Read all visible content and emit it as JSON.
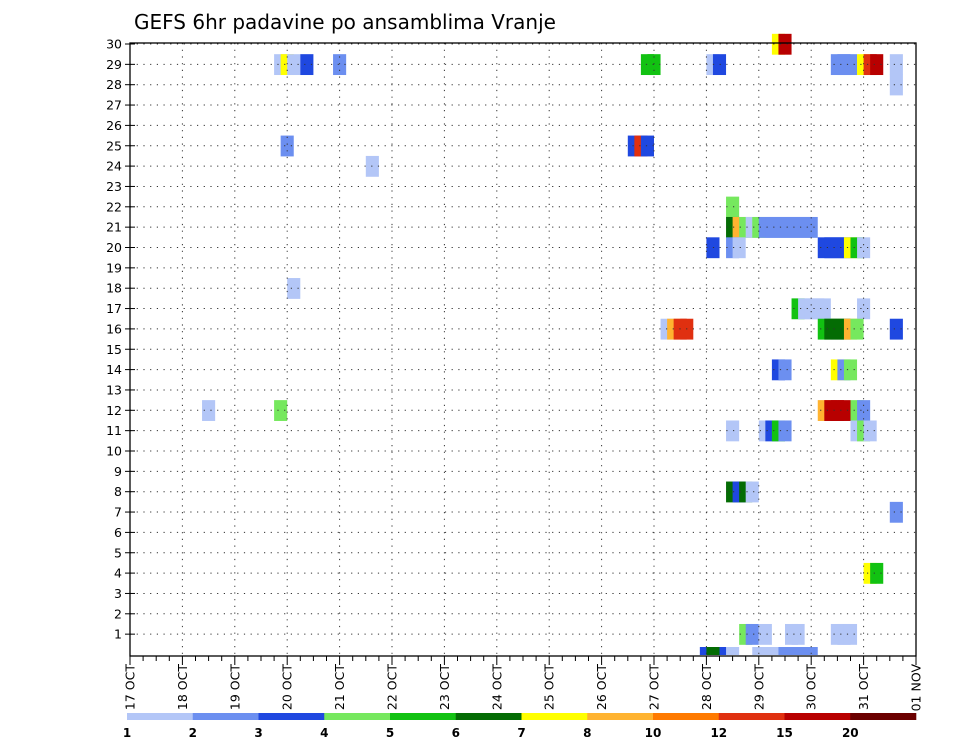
{
  "chart_data": {
    "type": "heatmap",
    "title": "GEFS 6hr padavine po ansamblima Vranje",
    "xlabel": "",
    "ylabel": "",
    "x_start": "17 OCT 00z",
    "x_step_hours": 6,
    "x_steps": 60,
    "x_ticks": [
      "17 OCT",
      "18 OCT",
      "19 OCT",
      "20 OCT",
      "21 OCT",
      "22 OCT",
      "23 OCT",
      "24 OCT",
      "25 OCT",
      "26 OCT",
      "27 OCT",
      "28 OCT",
      "29 OCT",
      "30 OCT",
      "31 OCT",
      "01 NOV"
    ],
    "y_ticks": [
      "1",
      "2",
      "3",
      "4",
      "5",
      "6",
      "7",
      "8",
      "9",
      "10",
      "11",
      "12",
      "13",
      "14",
      "15",
      "16",
      "17",
      "18",
      "19",
      "20",
      "21",
      "22",
      "23",
      "24",
      "25",
      "26",
      "27",
      "28",
      "29",
      "30"
    ],
    "grid": true,
    "colorbar": {
      "placement": "bottom",
      "colors": [
        "#b3c6f7",
        "#6c8ff0",
        "#1f48e0",
        "#76e85e",
        "#12c212",
        "#046c04",
        "#ffff00",
        "#ffb330",
        "#ff7a00",
        "#e03010",
        "#b80000",
        "#6b0000"
      ],
      "labels": [
        "1",
        "2",
        "3",
        "4",
        "5",
        "6",
        "7",
        "8",
        "10",
        "12",
        "15",
        "20"
      ]
    },
    "cells": [
      [
        11.5,
        29,
        1
      ],
      [
        12,
        29,
        7
      ],
      [
        12.5,
        29,
        1
      ],
      [
        13.5,
        29,
        3
      ],
      [
        16,
        29,
        2
      ],
      [
        39.5,
        29,
        5
      ],
      [
        40,
        29,
        5
      ],
      [
        44.5,
        29,
        1
      ],
      [
        45,
        29,
        3
      ],
      [
        54,
        29,
        2
      ],
      [
        54.5,
        29,
        2
      ],
      [
        55,
        29,
        2
      ],
      [
        56,
        29,
        7
      ],
      [
        56.5,
        29,
        10
      ],
      [
        57,
        29,
        11
      ],
      [
        58.5,
        29,
        1
      ],
      [
        49.5,
        30,
        7
      ],
      [
        50,
        30,
        11
      ],
      [
        58.5,
        28,
        1
      ],
      [
        12,
        25,
        2
      ],
      [
        38.5,
        25,
        3
      ],
      [
        39,
        25,
        10
      ],
      [
        39.5,
        25,
        3
      ],
      [
        18.5,
        24,
        1
      ],
      [
        46,
        22,
        4
      ],
      [
        46,
        21,
        6
      ],
      [
        46.5,
        21,
        8
      ],
      [
        47,
        21,
        4
      ],
      [
        47.5,
        21,
        1
      ],
      [
        48,
        21,
        4
      ],
      [
        48.5,
        21,
        2
      ],
      [
        49,
        21,
        2
      ],
      [
        49.5,
        21,
        2
      ],
      [
        50,
        21,
        2
      ],
      [
        50.5,
        21,
        2
      ],
      [
        51,
        21,
        2
      ],
      [
        51.5,
        21,
        2
      ],
      [
        52,
        21,
        2
      ],
      [
        44.5,
        20,
        3
      ],
      [
        46,
        20,
        2
      ],
      [
        46.5,
        20,
        1
      ],
      [
        53,
        20,
        3
      ],
      [
        53.5,
        20,
        3
      ],
      [
        54,
        20,
        3
      ],
      [
        54.5,
        20,
        3
      ],
      [
        55,
        20,
        7
      ],
      [
        55.5,
        20,
        5
      ],
      [
        56,
        20,
        1
      ],
      [
        12.5,
        18,
        1
      ],
      [
        51,
        17,
        5
      ],
      [
        51.5,
        17,
        1
      ],
      [
        52,
        17,
        1
      ],
      [
        52.5,
        17,
        1
      ],
      [
        53,
        17,
        1
      ],
      [
        56,
        17,
        1
      ],
      [
        41,
        16,
        1
      ],
      [
        41.5,
        16,
        8
      ],
      [
        42,
        16,
        10
      ],
      [
        42.5,
        16,
        10
      ],
      [
        53,
        16,
        5
      ],
      [
        53.5,
        16,
        6
      ],
      [
        54,
        16,
        6
      ],
      [
        54.5,
        16,
        6
      ],
      [
        55,
        16,
        8
      ],
      [
        55.5,
        16,
        4
      ],
      [
        58.5,
        16,
        3
      ],
      [
        49.5,
        14,
        3
      ],
      [
        50,
        14,
        2
      ],
      [
        54,
        14,
        7
      ],
      [
        54.5,
        14,
        2
      ],
      [
        55,
        14,
        4
      ],
      [
        6,
        12,
        1
      ],
      [
        11.5,
        12,
        4
      ],
      [
        53,
        12,
        8
      ],
      [
        53.5,
        12,
        11
      ],
      [
        54,
        12,
        11
      ],
      [
        54.5,
        12,
        11
      ],
      [
        55.5,
        12,
        4
      ],
      [
        56,
        12,
        2
      ],
      [
        46,
        11,
        1
      ],
      [
        48.5,
        11,
        1
      ],
      [
        49,
        11,
        3
      ],
      [
        49.5,
        11,
        5
      ],
      [
        50,
        11,
        2
      ],
      [
        55.5,
        11,
        1
      ],
      [
        56,
        11,
        4
      ],
      [
        56.5,
        11,
        1
      ],
      [
        46,
        8,
        6
      ],
      [
        46.5,
        8,
        3
      ],
      [
        47,
        8,
        6
      ],
      [
        47.5,
        8,
        1
      ],
      [
        58.5,
        7,
        2
      ],
      [
        56.5,
        4,
        7
      ],
      [
        57,
        4,
        5
      ],
      [
        47,
        1,
        4
      ],
      [
        47.5,
        1,
        2
      ],
      [
        48.5,
        1,
        1
      ],
      [
        50.5,
        1,
        1
      ],
      [
        51,
        1,
        1
      ],
      [
        54,
        1,
        1
      ],
      [
        54.5,
        1,
        1
      ],
      [
        55,
        1,
        1
      ],
      [
        44,
        0.25,
        3
      ],
      [
        44.5,
        0.25,
        6
      ],
      [
        45,
        0.25,
        6
      ],
      [
        45.5,
        0.25,
        3
      ],
      [
        46,
        0.25,
        1
      ],
      [
        48,
        0.25,
        1
      ],
      [
        48.5,
        0.25,
        1
      ],
      [
        49,
        0.25,
        1
      ],
      [
        49.5,
        0.25,
        1
      ],
      [
        50,
        0.25,
        2
      ],
      [
        50.5,
        0.25,
        2
      ],
      [
        51,
        0.25,
        2
      ],
      [
        51.5,
        0.25,
        2
      ],
      [
        52,
        0.25,
        2
      ]
    ]
  }
}
